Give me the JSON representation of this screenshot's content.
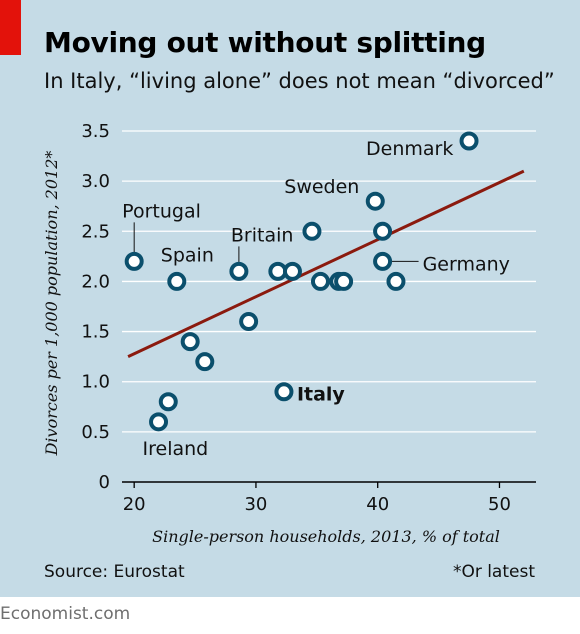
{
  "header": {
    "title": "Moving out without splitting",
    "subtitle": "In Italy, “living alone” does not mean “divorced”"
  },
  "footer": {
    "source": "Source: Eurostat",
    "footnote": "*Or latest",
    "brand": "Economist.com"
  },
  "colors": {
    "background": "#c5dbe6",
    "accent": "#e3120b",
    "trendline": "#8b1a0e",
    "marker_stroke": "#0b4f6c",
    "marker_fill": "#ffffff",
    "grid": "#ffffff"
  },
  "chart_data": {
    "type": "scatter",
    "xlabel": "Single-person households, 2013, % of total",
    "ylabel": "Divorces per 1,000 population, 2012*",
    "xlim": [
      19,
      53
    ],
    "ylim": [
      0,
      3.6
    ],
    "x_ticks": [
      20,
      30,
      40,
      50
    ],
    "y_ticks": [
      "0",
      "0.5",
      "1.0",
      "1.5",
      "2.0",
      "2.5",
      "3.0",
      "3.5"
    ],
    "grid": "horizontal",
    "points": [
      {
        "x": 20.0,
        "y": 2.2,
        "label": "Portugal"
      },
      {
        "x": 23.5,
        "y": 2.0,
        "label": "Spain"
      },
      {
        "x": 22.0,
        "y": 0.6,
        "label": "Ireland"
      },
      {
        "x": 22.8,
        "y": 0.8,
        "label": ""
      },
      {
        "x": 24.6,
        "y": 1.4,
        "label": ""
      },
      {
        "x": 25.8,
        "y": 1.2,
        "label": ""
      },
      {
        "x": 28.6,
        "y": 2.1,
        "label": "Britain"
      },
      {
        "x": 29.4,
        "y": 1.6,
        "label": ""
      },
      {
        "x": 31.8,
        "y": 2.1,
        "label": ""
      },
      {
        "x": 33.0,
        "y": 2.1,
        "label": ""
      },
      {
        "x": 32.3,
        "y": 0.9,
        "label": "Italy"
      },
      {
        "x": 34.6,
        "y": 2.5,
        "label": ""
      },
      {
        "x": 35.3,
        "y": 2.0,
        "label": ""
      },
      {
        "x": 36.8,
        "y": 2.0,
        "label": ""
      },
      {
        "x": 37.2,
        "y": 2.0,
        "label": ""
      },
      {
        "x": 39.8,
        "y": 2.8,
        "label": "Sweden"
      },
      {
        "x": 40.4,
        "y": 2.5,
        "label": ""
      },
      {
        "x": 40.4,
        "y": 2.2,
        "label": "Germany"
      },
      {
        "x": 41.5,
        "y": 2.0,
        "label": ""
      },
      {
        "x": 47.5,
        "y": 3.4,
        "label": "Denmark"
      }
    ],
    "trendline": {
      "x": [
        19.5,
        52.0
      ],
      "y": [
        1.25,
        3.1
      ]
    }
  }
}
